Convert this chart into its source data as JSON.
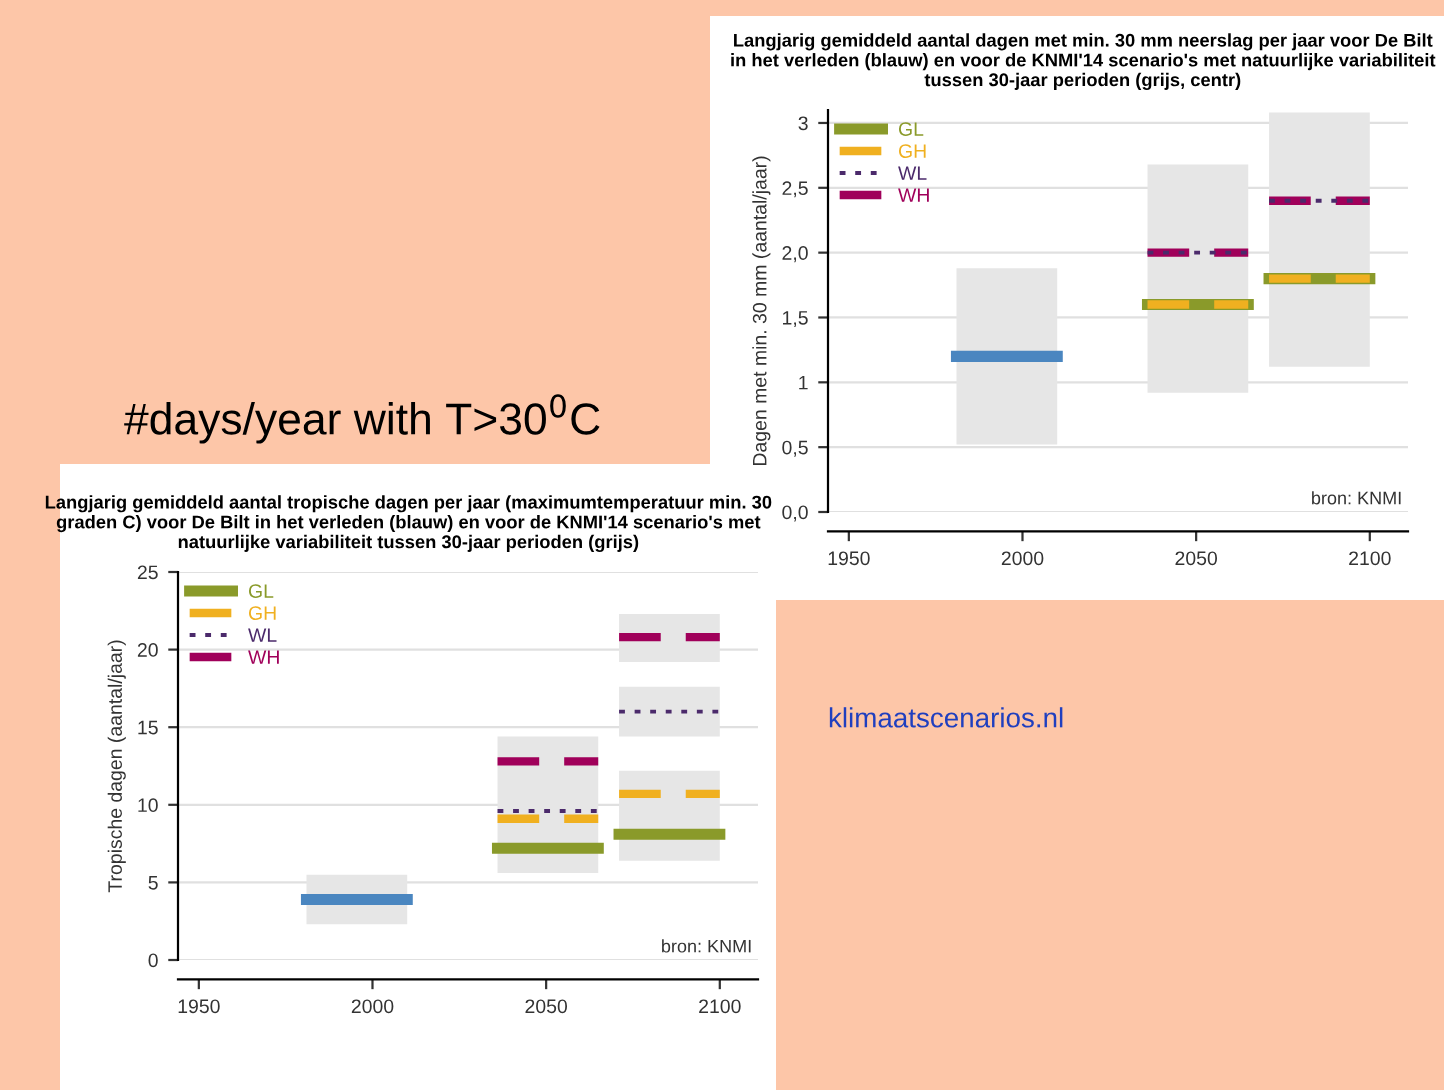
{
  "chart_data": [
    {
      "type": "line",
      "title": "Langjarig gemiddeld aantal dagen met min. 30 mm neerslag per jaar voor De Bilt in het verleden (blauw) en voor de KNMI'14 scenario's met natuurlijke variabiliteit tussen 30-jaar perioden (grijs, centr)",
      "ylabel": "Dagen met min. 30 mm (aantal/jaar)",
      "xlim": [
        1944,
        2111
      ],
      "xticks": [
        1950,
        2000,
        2050,
        2100
      ],
      "ylim": [
        0,
        3.1
      ],
      "yticks": [
        {
          "value": 0,
          "label": "0,0"
        },
        {
          "value": 0.5,
          "label": "0,5"
        },
        1,
        {
          "value": 1.5,
          "label": "1,5"
        },
        {
          "value": 2,
          "label": "2,0"
        },
        {
          "value": 2.5,
          "label": "2,5"
        },
        3
      ],
      "grid": "y",
      "legend": "top left",
      "annotations": [
        "bron: KNMI",
        "klimaatscenarios.nl"
      ],
      "series": [
        {
          "color": "#4a86c0",
          "line_style": "solid",
          "x": [
            1981,
            2010
          ],
          "values": [
            1.2,
            1.2
          ],
          "lower": [
            0.52,
            0.52
          ],
          "upper": [
            1.88,
            1.88
          ]
        },
        {
          "name": "GL",
          "color": "#8a9a2a",
          "line_style": "solid",
          "x": [
            2036,
            2065,
            2068,
            2071,
            2100
          ],
          "values": [
            1.6,
            1.6,
            null,
            1.8,
            1.8
          ],
          "lower": [
            0.92,
            0.92,
            null,
            1.12,
            1.12
          ],
          "upper": [
            2.68,
            2.68,
            null,
            3.08,
            3.08
          ]
        },
        {
          "name": "GH",
          "color": "#f0b020",
          "line_style": "dashed",
          "x": [
            2036,
            2065,
            2068,
            2071,
            2100
          ],
          "values": [
            1.6,
            1.6,
            null,
            1.8,
            1.8
          ]
        },
        {
          "name": "WL",
          "color": "#4b2a6b",
          "line_style": "dotted",
          "x": [
            2036,
            2065,
            2068,
            2071,
            2100
          ],
          "values": [
            2.0,
            2.0,
            null,
            2.4,
            2.4
          ]
        },
        {
          "name": "WH",
          "color": "#a0005a",
          "line_style": "dashed",
          "x": [
            2036,
            2065,
            2068,
            2071,
            2100
          ],
          "values": [
            2.0,
            2.0,
            null,
            2.4,
            2.4
          ]
        }
      ]
    },
    {
      "type": "line",
      "title": "Langjarig gemiddeld aantal tropische dagen per jaar (maximumtemperatuur min. 30 graden C) voor De Bilt in het verleden (blauw) en voor de KNMI'14 scenario's met natuurlijke variabiliteit tussen 30-jaar perioden (grijs)",
      "ylabel": "Tropische dagen (aantal/jaar)",
      "xlim": [
        1944,
        2111
      ],
      "xticks": [
        1950,
        2000,
        2050,
        2100
      ],
      "ylim": [
        0,
        25
      ],
      "yticks": [
        0,
        5,
        10,
        15,
        20,
        25
      ],
      "grid": "y",
      "legend": "top left",
      "annotations": [
        "bron: KNMI",
        "#days/year with T>30$^{0}$C"
      ],
      "series": [
        {
          "color": "#4a86c0",
          "line_style": "solid",
          "x": [
            1981,
            2010
          ],
          "values": [
            3.9,
            3.9
          ],
          "lower": [
            2.3,
            2.3
          ],
          "upper": [
            5.5,
            5.5
          ]
        },
        {
          "name": "GL",
          "color": "#8a9a2a",
          "line_style": "solid",
          "x": [
            2036,
            2065,
            2068,
            2071,
            2100
          ],
          "values": [
            7.2,
            7.2,
            null,
            8.1,
            8.1
          ],
          "lower": [
            5.6,
            5.6,
            null,
            6.4,
            6.4
          ],
          "upper": [
            14.4,
            14.4,
            null,
            12.2,
            12.2
          ]
        },
        {
          "name": "GH",
          "color": "#f0b020",
          "line_style": "dashed",
          "x": [
            2036,
            2065,
            2068,
            2071,
            2100
          ],
          "values": [
            9.1,
            9.1,
            null,
            10.7,
            10.7
          ]
        },
        {
          "name": "WL",
          "color": "#4b2a6b",
          "line_style": "dotted",
          "x": [
            2036,
            2065,
            2068,
            2071,
            2100
          ],
          "values": [
            9.6,
            9.6,
            null,
            16.0,
            16.0
          ],
          "lower": [
            null,
            null,
            null,
            14.4,
            14.4
          ],
          "upper": [
            null,
            null,
            null,
            17.6,
            17.6
          ]
        },
        {
          "name": "WH",
          "color": "#a0005a",
          "line_style": "dashed",
          "x": [
            2036,
            2065,
            2068,
            2071,
            2100
          ],
          "values": [
            12.8,
            12.8,
            null,
            20.8,
            20.8
          ],
          "lower": [
            null,
            null,
            null,
            19.2,
            19.2
          ],
          "upper": [
            null,
            null,
            null,
            22.3,
            22.3
          ]
        }
      ]
    }
  ]
}
